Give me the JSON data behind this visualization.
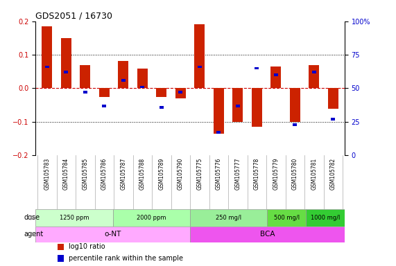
{
  "title": "GDS2051 / 16730",
  "samples": [
    "GSM105783",
    "GSM105784",
    "GSM105785",
    "GSM105786",
    "GSM105787",
    "GSM105788",
    "GSM105789",
    "GSM105790",
    "GSM105775",
    "GSM105776",
    "GSM105777",
    "GSM105778",
    "GSM105779",
    "GSM105780",
    "GSM105781",
    "GSM105782"
  ],
  "log10_ratio": [
    0.185,
    0.15,
    0.07,
    -0.025,
    0.082,
    0.058,
    -0.025,
    -0.03,
    0.192,
    -0.135,
    -0.1,
    -0.115,
    0.065,
    -0.1,
    0.07,
    -0.06
  ],
  "percentile_rank": [
    66,
    62,
    47,
    37,
    56,
    51,
    36,
    47,
    66,
    17,
    37,
    65,
    60,
    23,
    62,
    27
  ],
  "ylim": [
    -0.2,
    0.2
  ],
  "yticks_left": [
    -0.2,
    -0.1,
    0.0,
    0.1,
    0.2
  ],
  "yticks_right_pct": [
    0,
    25,
    50,
    75,
    100
  ],
  "hlines": [
    0.1,
    0.0,
    -0.1
  ],
  "bar_color_red": "#cc2200",
  "bar_color_blue": "#0000cc",
  "bar_width": 0.55,
  "blue_sq_size": 0.008,
  "dose_groups": [
    {
      "label": "1250 ppm",
      "start": 0,
      "end": 4,
      "color": "#ccffcc"
    },
    {
      "label": "2000 ppm",
      "start": 4,
      "end": 8,
      "color": "#aaffaa"
    },
    {
      "label": "250 mg/l",
      "start": 8,
      "end": 12,
      "color": "#99ee99"
    },
    {
      "label": "500 mg/l",
      "start": 12,
      "end": 14,
      "color": "#66dd44"
    },
    {
      "label": "1000 mg/l",
      "start": 14,
      "end": 16,
      "color": "#33cc33"
    }
  ],
  "agent_groups": [
    {
      "label": "o-NT",
      "start": 0,
      "end": 8,
      "color": "#ffaaff"
    },
    {
      "label": "BCA",
      "start": 8,
      "end": 16,
      "color": "#ee55ee"
    }
  ],
  "dose_label": "dose",
  "agent_label": "agent",
  "legend_items": [
    {
      "color": "#cc2200",
      "label": "log10 ratio"
    },
    {
      "color": "#0000cc",
      "label": "percentile rank within the sample"
    }
  ],
  "bg_color": "#ffffff",
  "label_bg": "#d8d8d8",
  "zero_line_color": "#cc0000",
  "dotted_line_color": "#000000"
}
